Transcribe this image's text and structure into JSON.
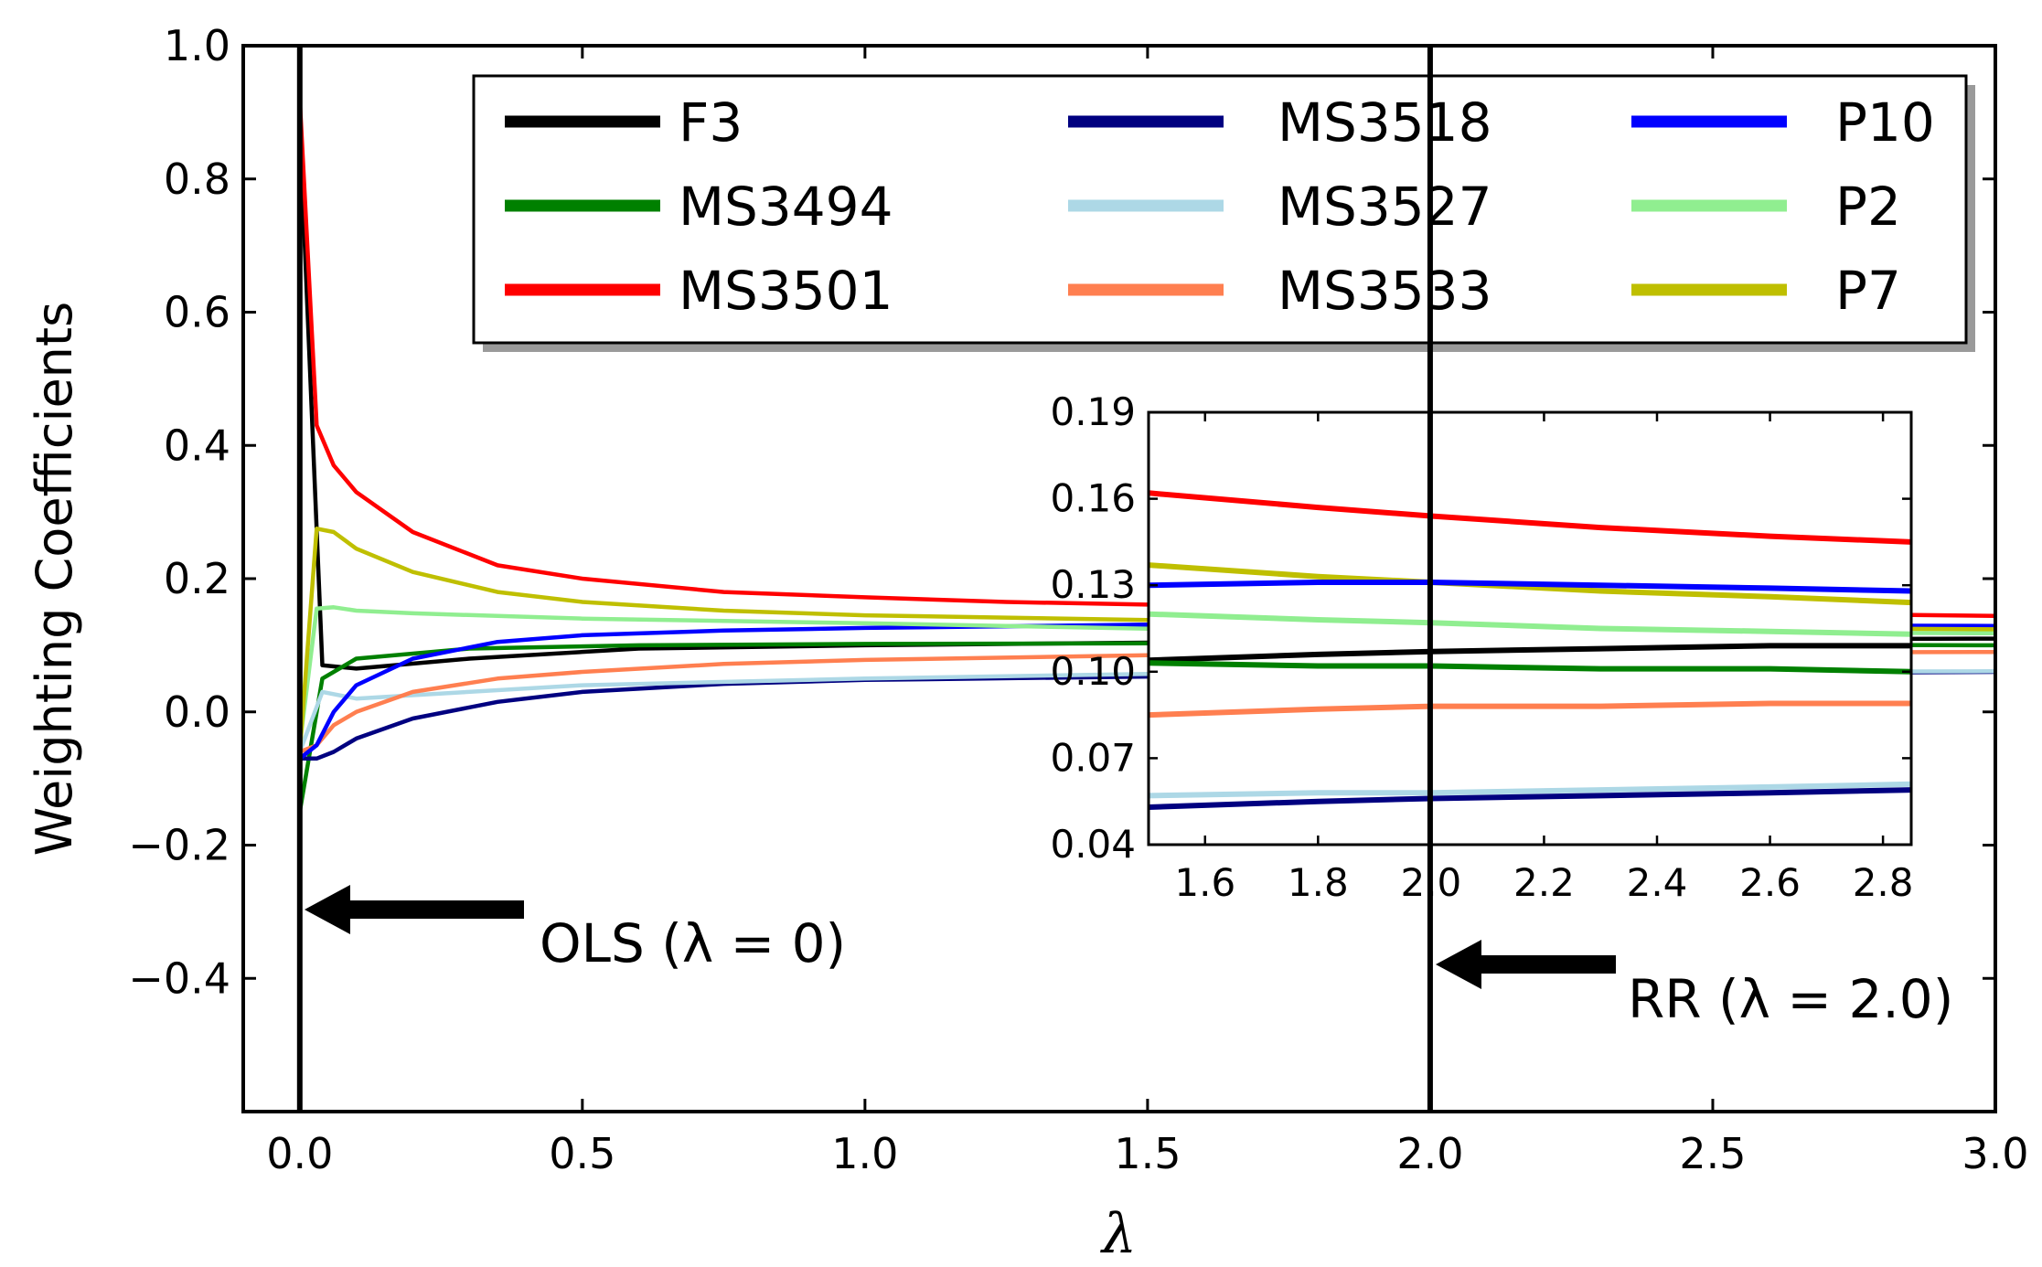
{
  "chart_data": {
    "type": "line",
    "xlabel": "λ",
    "ylabel": "Weighting Coefficients",
    "xlim": [
      -0.1,
      3.0
    ],
    "ylim": [
      -0.6,
      1.0
    ],
    "xticks": [
      "0.0",
      "0.5",
      "1.0",
      "1.5",
      "2.0",
      "2.5",
      "3.0"
    ],
    "xtick_values": [
      0.0,
      0.5,
      1.0,
      1.5,
      2.0,
      2.5,
      3.0
    ],
    "yticks": [
      "1.0",
      "0.8",
      "0.6",
      "0.4",
      "0.2",
      "0.0",
      "−0.2",
      "−0.4"
    ],
    "ytick_values": [
      1.0,
      0.8,
      0.6,
      0.4,
      0.2,
      0.0,
      -0.2,
      -0.4
    ],
    "legend_position": "top-right",
    "vlines": [
      0.0,
      2.0
    ],
    "annotations": [
      {
        "text": "OLS (λ = 0)",
        "x": 0.0
      },
      {
        "text": "RR (λ = 2.0)",
        "x": 2.0
      }
    ],
    "series": [
      {
        "name": "F3",
        "color": "#000000",
        "points": [
          [
            0.0,
            0.88
          ],
          [
            0.04,
            0.07
          ],
          [
            0.1,
            0.065
          ],
          [
            0.3,
            0.08
          ],
          [
            0.6,
            0.095
          ],
          [
            1.0,
            0.1
          ],
          [
            1.5,
            0.104
          ],
          [
            2.0,
            0.107
          ],
          [
            2.5,
            0.109
          ],
          [
            3.0,
            0.11
          ]
        ]
      },
      {
        "name": "MS3494",
        "color": "#008000",
        "points": [
          [
            0.0,
            -0.15
          ],
          [
            0.04,
            0.05
          ],
          [
            0.1,
            0.08
          ],
          [
            0.3,
            0.095
          ],
          [
            0.6,
            0.1
          ],
          [
            1.0,
            0.102
          ],
          [
            1.5,
            0.103
          ],
          [
            2.0,
            0.102
          ],
          [
            2.5,
            0.101
          ],
          [
            3.0,
            0.1
          ]
        ]
      },
      {
        "name": "MS3501",
        "color": "#ff0000",
        "points": [
          [
            0.0,
            0.92
          ],
          [
            0.03,
            0.43
          ],
          [
            0.06,
            0.37
          ],
          [
            0.1,
            0.33
          ],
          [
            0.2,
            0.27
          ],
          [
            0.35,
            0.22
          ],
          [
            0.5,
            0.2
          ],
          [
            0.75,
            0.18
          ],
          [
            1.0,
            0.172
          ],
          [
            1.25,
            0.165
          ],
          [
            1.5,
            0.161
          ],
          [
            2.0,
            0.154
          ],
          [
            2.5,
            0.148
          ],
          [
            2.8,
            0.146
          ],
          [
            3.0,
            0.144
          ]
        ]
      },
      {
        "name": "MS3518",
        "color": "#000080",
        "points": [
          [
            0.0,
            -0.07
          ],
          [
            0.03,
            -0.07
          ],
          [
            0.06,
            -0.06
          ],
          [
            0.1,
            -0.04
          ],
          [
            0.2,
            -0.01
          ],
          [
            0.35,
            0.015
          ],
          [
            0.5,
            0.03
          ],
          [
            0.75,
            0.042
          ],
          [
            1.0,
            0.048
          ],
          [
            1.5,
            0.053
          ],
          [
            2.0,
            0.056
          ],
          [
            2.5,
            0.058
          ],
          [
            3.0,
            0.06
          ]
        ]
      },
      {
        "name": "MS3527",
        "color": "#add8e6",
        "points": [
          [
            0.0,
            -0.06
          ],
          [
            0.04,
            0.03
          ],
          [
            0.1,
            0.02
          ],
          [
            0.2,
            0.025
          ],
          [
            0.5,
            0.04
          ],
          [
            1.0,
            0.05
          ],
          [
            1.5,
            0.057
          ],
          [
            2.0,
            0.058
          ],
          [
            2.5,
            0.06
          ],
          [
            3.0,
            0.061
          ]
        ]
      },
      {
        "name": "MS3533",
        "color": "#ff7f50",
        "points": [
          [
            0.0,
            -0.06
          ],
          [
            0.03,
            -0.05
          ],
          [
            0.06,
            -0.02
          ],
          [
            0.1,
            0.0
          ],
          [
            0.2,
            0.03
          ],
          [
            0.35,
            0.05
          ],
          [
            0.5,
            0.06
          ],
          [
            0.75,
            0.072
          ],
          [
            1.0,
            0.078
          ],
          [
            1.5,
            0.085
          ],
          [
            2.0,
            0.088
          ],
          [
            2.5,
            0.089
          ],
          [
            3.0,
            0.09
          ]
        ]
      },
      {
        "name": "P10",
        "color": "#0000ff",
        "points": [
          [
            0.0,
            -0.07
          ],
          [
            0.03,
            -0.05
          ],
          [
            0.06,
            0.0
          ],
          [
            0.1,
            0.04
          ],
          [
            0.2,
            0.08
          ],
          [
            0.35,
            0.105
          ],
          [
            0.5,
            0.115
          ],
          [
            0.75,
            0.122
          ],
          [
            1.0,
            0.126
          ],
          [
            1.5,
            0.131
          ],
          [
            2.0,
            0.131
          ],
          [
            2.5,
            0.13
          ],
          [
            3.0,
            0.129
          ]
        ]
      },
      {
        "name": "P2",
        "color": "#90ee90",
        "points": [
          [
            0.0,
            -0.05
          ],
          [
            0.03,
            0.155
          ],
          [
            0.06,
            0.157
          ],
          [
            0.1,
            0.152
          ],
          [
            0.2,
            0.148
          ],
          [
            0.5,
            0.14
          ],
          [
            1.0,
            0.133
          ],
          [
            1.5,
            0.125
          ],
          [
            2.0,
            0.122
          ],
          [
            2.5,
            0.12
          ],
          [
            3.0,
            0.118
          ]
        ]
      },
      {
        "name": "P7",
        "color": "#bfbf00",
        "points": [
          [
            0.0,
            -0.06
          ],
          [
            0.03,
            0.275
          ],
          [
            0.06,
            0.27
          ],
          [
            0.1,
            0.245
          ],
          [
            0.2,
            0.21
          ],
          [
            0.35,
            0.18
          ],
          [
            0.5,
            0.165
          ],
          [
            0.75,
            0.152
          ],
          [
            1.0,
            0.145
          ],
          [
            1.5,
            0.138
          ],
          [
            2.0,
            0.132
          ],
          [
            2.5,
            0.128
          ],
          [
            2.8,
            0.125
          ],
          [
            3.0,
            0.124
          ]
        ]
      }
    ],
    "inset": {
      "xlim": [
        1.5,
        2.85
      ],
      "ylim": [
        0.04,
        0.19
      ],
      "xticks": [
        "1.6",
        "1.8",
        "2.0",
        "2.2",
        "2.4",
        "2.6",
        "2.8"
      ],
      "xtick_values": [
        1.6,
        1.8,
        2.0,
        2.2,
        2.4,
        2.6,
        2.8
      ],
      "yticks": [
        "0.19",
        "0.16",
        "0.13",
        "0.10",
        "0.07",
        "0.04"
      ],
      "ytick_values": [
        0.19,
        0.16,
        0.13,
        0.1,
        0.07,
        0.04
      ],
      "series": [
        {
          "name": "MS3501",
          "color": "#ff0000",
          "points": [
            [
              1.5,
              0.162
            ],
            [
              1.8,
              0.157
            ],
            [
              2.0,
              0.154
            ],
            [
              2.3,
              0.15
            ],
            [
              2.6,
              0.147
            ],
            [
              2.85,
              0.145
            ]
          ]
        },
        {
          "name": "P7",
          "color": "#bfbf00",
          "points": [
            [
              1.5,
              0.137
            ],
            [
              1.8,
              0.133
            ],
            [
              2.0,
              0.131
            ],
            [
              2.3,
              0.128
            ],
            [
              2.6,
              0.126
            ],
            [
              2.85,
              0.124
            ]
          ]
        },
        {
          "name": "P10",
          "color": "#0000ff",
          "points": [
            [
              1.5,
              0.13
            ],
            [
              1.8,
              0.131
            ],
            [
              2.0,
              0.131
            ],
            [
              2.3,
              0.13
            ],
            [
              2.6,
              0.129
            ],
            [
              2.85,
              0.128
            ]
          ]
        },
        {
          "name": "P2",
          "color": "#90ee90",
          "points": [
            [
              1.5,
              0.12
            ],
            [
              1.8,
              0.118
            ],
            [
              2.0,
              0.117
            ],
            [
              2.3,
              0.115
            ],
            [
              2.6,
              0.114
            ],
            [
              2.85,
              0.113
            ]
          ]
        },
        {
          "name": "F3",
          "color": "#000000",
          "points": [
            [
              1.5,
              0.104
            ],
            [
              1.8,
              0.106
            ],
            [
              2.0,
              0.107
            ],
            [
              2.3,
              0.108
            ],
            [
              2.6,
              0.109
            ],
            [
              2.85,
              0.109
            ]
          ]
        },
        {
          "name": "MS3494",
          "color": "#008000",
          "points": [
            [
              1.5,
              0.103
            ],
            [
              1.8,
              0.102
            ],
            [
              2.0,
              0.102
            ],
            [
              2.3,
              0.101
            ],
            [
              2.6,
              0.101
            ],
            [
              2.85,
              0.1
            ]
          ]
        },
        {
          "name": "MS3533",
          "color": "#ff7f50",
          "points": [
            [
              1.5,
              0.085
            ],
            [
              1.8,
              0.087
            ],
            [
              2.0,
              0.088
            ],
            [
              2.3,
              0.088
            ],
            [
              2.6,
              0.089
            ],
            [
              2.85,
              0.089
            ]
          ]
        },
        {
          "name": "MS3527",
          "color": "#add8e6",
          "points": [
            [
              1.5,
              0.057
            ],
            [
              1.8,
              0.058
            ],
            [
              2.0,
              0.058
            ],
            [
              2.3,
              0.059
            ],
            [
              2.6,
              0.06
            ],
            [
              2.85,
              0.061
            ]
          ]
        },
        {
          "name": "MS3518",
          "color": "#000080",
          "points": [
            [
              1.5,
              0.053
            ],
            [
              1.8,
              0.055
            ],
            [
              2.0,
              0.056
            ],
            [
              2.3,
              0.057
            ],
            [
              2.6,
              0.058
            ],
            [
              2.85,
              0.059
            ]
          ]
        }
      ]
    }
  }
}
